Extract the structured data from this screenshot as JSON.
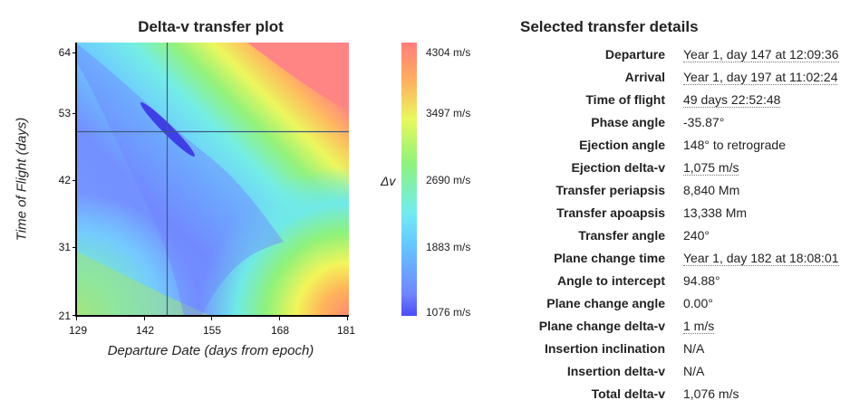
{
  "plot": {
    "title": "Delta-v transfer plot",
    "xlabel": "Departure Date (days from epoch)",
    "ylabel": "Time of Flight (days)",
    "x_ticks": [
      "129",
      "142",
      "155",
      "168",
      "181"
    ],
    "y_ticks": [
      "64",
      "53",
      "42",
      "31",
      "21"
    ],
    "colorbar_label": "Δv",
    "colorbar_ticks": [
      "4304 m/s",
      "3497 m/s",
      "2690 m/s",
      "1883 m/s",
      "1076 m/s"
    ],
    "selected": {
      "departure_day": 147,
      "time_of_flight_days": 50
    }
  },
  "details": {
    "title": "Selected transfer details",
    "rows": [
      {
        "label": "Departure",
        "value": "Year 1, day 147 at 12:09:36",
        "dotted": true
      },
      {
        "label": "Arrival",
        "value": "Year 1, day 197 at 11:02:24",
        "dotted": true
      },
      {
        "label": "Time of flight",
        "value": "49 days 22:52:48",
        "dotted": true
      },
      {
        "label": "Phase angle",
        "value": "-35.87°",
        "dotted": false
      },
      {
        "label": "Ejection angle",
        "value": "148° to retrograde",
        "dotted": false
      },
      {
        "label": "Ejection delta-v",
        "value": "1,075 m/s",
        "dotted": true
      },
      {
        "label": "Transfer periapsis",
        "value": "8,840 Mm",
        "dotted": false
      },
      {
        "label": "Transfer apoapsis",
        "value": "13,338 Mm",
        "dotted": false
      },
      {
        "label": "Transfer angle",
        "value": "240°",
        "dotted": false
      },
      {
        "label": "Plane change time",
        "value": "Year 1, day 182 at 18:08:01",
        "dotted": true
      },
      {
        "label": "Angle to intercept",
        "value": "94.88°",
        "dotted": false
      },
      {
        "label": "Plane change angle",
        "value": "0.00°",
        "dotted": false
      },
      {
        "label": "Plane change delta-v",
        "value": "1 m/s",
        "dotted": true
      },
      {
        "label": "Insertion inclination",
        "value": "N/A",
        "dotted": false
      },
      {
        "label": "Insertion delta-v",
        "value": "N/A",
        "dotted": false
      },
      {
        "label": "Total delta-v",
        "value": "1,076 m/s",
        "dotted": false
      }
    ]
  }
}
